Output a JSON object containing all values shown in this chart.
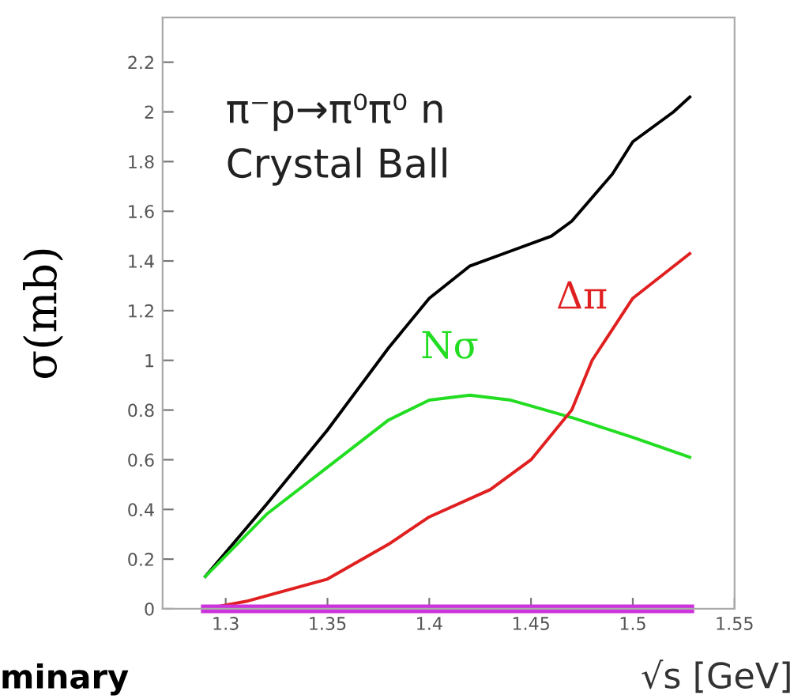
{
  "chart_data": {
    "type": "line",
    "xlabel": "√s [GeV]",
    "ylabel": "σ(mb)",
    "xlim": [
      1.269,
      1.55
    ],
    "ylim": [
      0,
      2.38
    ],
    "xticks": [
      1.3,
      1.35,
      1.4,
      1.45,
      1.5,
      1.55
    ],
    "yticks": [
      0,
      0.2,
      0.4,
      0.6,
      0.8,
      1,
      1.2,
      1.4,
      1.6,
      1.8,
      2,
      2.2
    ],
    "grid": false,
    "legend": false,
    "marker": "none",
    "line_style": "solid",
    "series": [
      {
        "color": "#000000",
        "x": [
          1.29,
          1.32,
          1.35,
          1.38,
          1.4,
          1.42,
          1.44,
          1.46,
          1.47,
          1.49,
          1.5,
          1.52,
          1.528
        ],
        "values": [
          0.13,
          0.42,
          0.72,
          1.05,
          1.25,
          1.38,
          1.44,
          1.5,
          1.56,
          1.75,
          1.88,
          2.0,
          2.06
        ]
      },
      {
        "name": "Nσ",
        "color": "#22dd22",
        "x": [
          1.29,
          1.32,
          1.35,
          1.38,
          1.4,
          1.42,
          1.44,
          1.47,
          1.5,
          1.528
        ],
        "values": [
          0.13,
          0.38,
          0.57,
          0.76,
          0.84,
          0.86,
          0.84,
          0.77,
          0.69,
          0.61
        ]
      },
      {
        "name": "Δπ",
        "color": "#e02020",
        "x": [
          1.29,
          1.31,
          1.35,
          1.38,
          1.4,
          1.43,
          1.45,
          1.47,
          1.48,
          1.5,
          1.528
        ],
        "values": [
          0.0,
          0.03,
          0.12,
          0.26,
          0.37,
          0.48,
          0.6,
          0.8,
          1.0,
          1.25,
          1.43
        ]
      },
      {
        "color": "#cc33dd",
        "x": [
          1.29,
          1.528
        ],
        "values": [
          0,
          0
        ]
      }
    ],
    "annotations": [
      "π⁻p→π⁰π⁰ n",
      "Crystal Ball",
      "minary"
    ]
  }
}
